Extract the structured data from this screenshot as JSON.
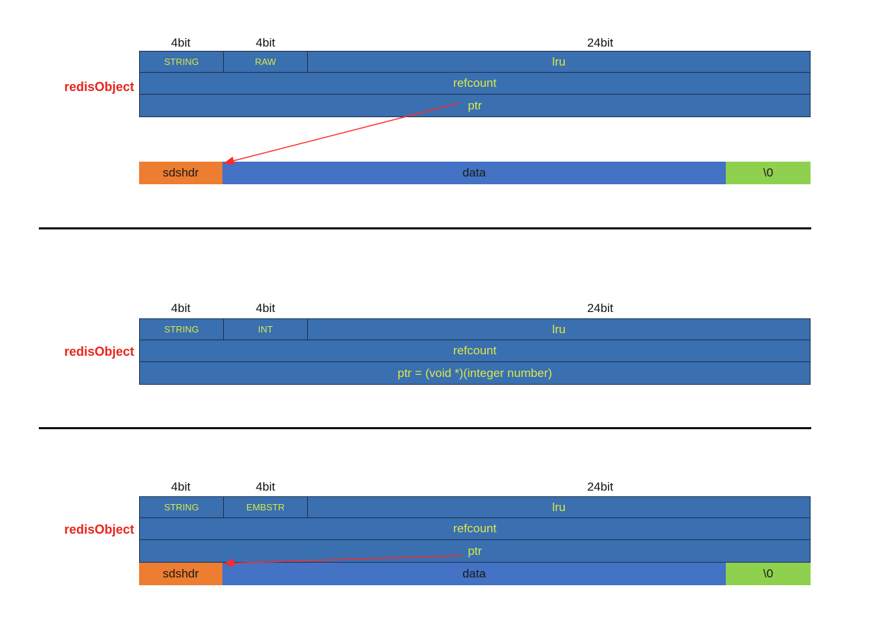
{
  "sections": [
    {
      "bits": [
        "4bit",
        "4bit",
        "24bit"
      ],
      "object_label": "redisObject",
      "type": "STRING",
      "encoding": "RAW",
      "lru": "lru",
      "refcount": "refcount",
      "ptr": "ptr",
      "buffer": {
        "sdshdr": "sdshdr",
        "data": "data",
        "terminator": "\\0"
      }
    },
    {
      "bits": [
        "4bit",
        "4bit",
        "24bit"
      ],
      "object_label": "redisObject",
      "type": "STRING",
      "encoding": "INT",
      "lru": "lru",
      "refcount": "refcount",
      "ptr": "ptr = (void *)(integer number)"
    },
    {
      "bits": [
        "4bit",
        "4bit",
        "24bit"
      ],
      "object_label": "redisObject",
      "type": "STRING",
      "encoding": "EMBSTR",
      "lru": "lru",
      "refcount": "refcount",
      "ptr": "ptr",
      "buffer": {
        "sdshdr": "sdshdr",
        "data": "data",
        "terminator": "\\0"
      }
    }
  ],
  "colors": {
    "object_fill": "#3a6fb0",
    "object_text": "#d8e84a",
    "sdshdr": "#ed7d31",
    "data": "#4472c4",
    "terminator": "#8fd14f",
    "label": "#e8251c",
    "arrow": "#ff2a2a"
  }
}
